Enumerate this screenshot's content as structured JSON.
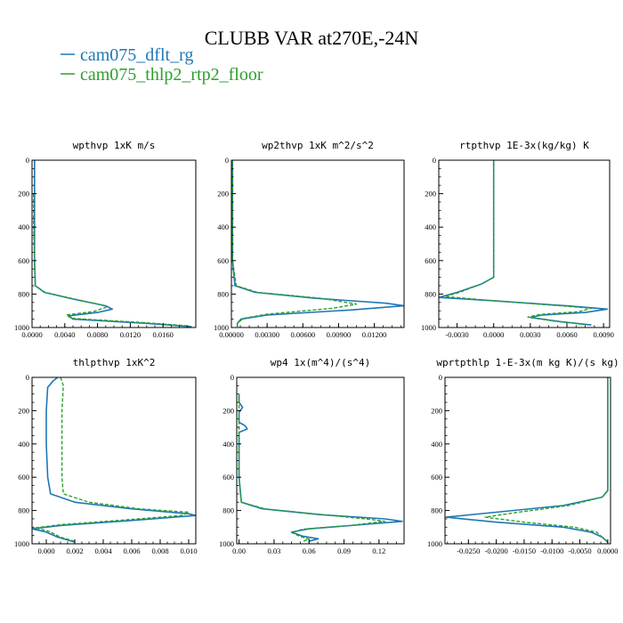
{
  "figure": {
    "title": "CLUBB VAR at270E,-24N",
    "legend": [
      {
        "label": "cam075_dflt_rg",
        "color": "#1f77b4"
      },
      {
        "label": "cam075_thlp2_rtp2_floor",
        "color": "#2ca02c"
      }
    ]
  },
  "chart_data": [
    {
      "type": "line",
      "title": "wpthvp  1xK m/s",
      "xlim": [
        0,
        0.02
      ],
      "ylim": [
        1000,
        0
      ],
      "xticks": [
        0.0,
        0.004,
        0.008,
        0.012,
        0.016
      ],
      "xtick_labels": [
        "0.0000",
        "0.0040",
        "0.0080",
        "0.0120",
        "0.0160"
      ],
      "yticks": [
        0,
        200,
        400,
        600,
        800,
        1000
      ],
      "ytick_labels": [
        "0",
        "200",
        "400",
        "600",
        "800",
        "1000"
      ],
      "series": [
        {
          "name": "cam075_dflt_rg",
          "style": "solid",
          "points": [
            [
              0.0003,
              0
            ],
            [
              0.0003,
              200
            ],
            [
              0.0003,
              400
            ],
            [
              0.0003,
              600
            ],
            [
              0.0004,
              750
            ],
            [
              0.0015,
              790
            ],
            [
              0.005,
              830
            ],
            [
              0.009,
              870
            ],
            [
              0.0098,
              890
            ],
            [
              0.008,
              910
            ],
            [
              0.0045,
              930
            ],
            [
              0.005,
              950
            ],
            [
              0.014,
              975
            ],
            [
              0.0195,
              995
            ]
          ]
        },
        {
          "name": "cam075_thlp2_rtp2_floor",
          "style": "dashed",
          "points": [
            [
              0.0002,
              200
            ],
            [
              0.0002,
              400
            ],
            [
              0.0003,
              600
            ],
            [
              0.0004,
              750
            ],
            [
              0.0016,
              790
            ],
            [
              0.0052,
              830
            ],
            [
              0.0085,
              865
            ],
            [
              0.009,
              880
            ],
            [
              0.0075,
              905
            ],
            [
              0.0042,
              925
            ],
            [
              0.0048,
              945
            ],
            [
              0.0135,
              970
            ],
            [
              0.019,
              990
            ]
          ]
        }
      ]
    },
    {
      "type": "line",
      "title": "wp2thvp  1xK m^2/s^2",
      "xlim": [
        0,
        0.0145
      ],
      "ylim": [
        1000,
        0
      ],
      "xticks": [
        0.0,
        0.003,
        0.006,
        0.009,
        0.012
      ],
      "xtick_labels": [
        "0.00000",
        "0.00300",
        "0.00600",
        "0.00900",
        "0.01200"
      ],
      "yticks": [
        0,
        200,
        400,
        600,
        800,
        1000
      ],
      "ytick_labels": [
        "0",
        "200",
        "400",
        "600",
        "800",
        "1000"
      ],
      "series": [
        {
          "name": "cam075_dflt_rg",
          "style": "solid",
          "points": [
            [
              0.0001,
              0
            ],
            [
              0.0001,
              200
            ],
            [
              0.0001,
              400
            ],
            [
              0.0001,
              600
            ],
            [
              0.0003,
              750
            ],
            [
              0.002,
              790
            ],
            [
              0.007,
              825
            ],
            [
              0.013,
              855
            ],
            [
              0.0145,
              870
            ],
            [
              0.01,
              895
            ],
            [
              0.003,
              925
            ],
            [
              0.0008,
              950
            ],
            [
              0.0005,
              975
            ],
            [
              0.0005,
              995
            ]
          ]
        },
        {
          "name": "cam075_thlp2_rtp2_floor",
          "style": "dashed",
          "points": [
            [
              0.0001,
              0
            ],
            [
              0.0001,
              200
            ],
            [
              0.0001,
              400
            ],
            [
              0.0001,
              600
            ],
            [
              0.0004,
              750
            ],
            [
              0.0022,
              790
            ],
            [
              0.0075,
              825
            ],
            [
              0.0105,
              860
            ],
            [
              0.0085,
              885
            ],
            [
              0.003,
              920
            ],
            [
              0.001,
              945
            ],
            [
              0.0005,
              975
            ],
            [
              0.0005,
              995
            ]
          ]
        }
      ]
    },
    {
      "type": "line",
      "title": "rtpthvp  1E-3x(kg/kg) K",
      "xlim": [
        -0.0045,
        0.0095
      ],
      "ylim": [
        1000,
        0
      ],
      "xticks": [
        -0.003,
        0.0,
        0.003,
        0.006,
        0.009
      ],
      "xtick_labels": [
        "-0.0030",
        "0.0000",
        "0.0030",
        "0.0060",
        "0.0090"
      ],
      "yticks": [
        0,
        200,
        400,
        600,
        800,
        1000
      ],
      "ytick_labels": [
        "0",
        "200",
        "400",
        "600",
        "800",
        "1000"
      ],
      "series": [
        {
          "name": "cam075_dflt_rg",
          "style": "solid",
          "points": [
            [
              0.0,
              0
            ],
            [
              0.0,
              200
            ],
            [
              0.0,
              400
            ],
            [
              0.0,
              600
            ],
            [
              0.0,
              700
            ],
            [
              -0.001,
              740
            ],
            [
              -0.003,
              790
            ],
            [
              -0.0045,
              820
            ],
            [
              0.0,
              840
            ],
            [
              0.006,
              870
            ],
            [
              0.0093,
              890
            ],
            [
              0.0075,
              910
            ],
            [
              0.004,
              925
            ],
            [
              0.003,
              940
            ],
            [
              0.0055,
              965
            ],
            [
              0.008,
              985
            ]
          ]
        },
        {
          "name": "cam075_thlp2_rtp2_floor",
          "style": "dashed",
          "points": [
            [
              0.0,
              0
            ],
            [
              0.0,
              200
            ],
            [
              0.0,
              400
            ],
            [
              0.0,
              600
            ],
            [
              0.0,
              700
            ],
            [
              -0.001,
              740
            ],
            [
              -0.0028,
              790
            ],
            [
              -0.004,
              815
            ],
            [
              0.0,
              840
            ],
            [
              0.0055,
              870
            ],
            [
              0.008,
              885
            ],
            [
              0.007,
              905
            ],
            [
              0.0038,
              922
            ],
            [
              0.0028,
              938
            ],
            [
              0.005,
              962
            ],
            [
              0.0075,
              982
            ]
          ]
        }
      ]
    },
    {
      "type": "line",
      "title": "thlpthvp  1xK^2",
      "xlim": [
        -0.001,
        0.0105
      ],
      "ylim": [
        1000,
        0
      ],
      "xticks": [
        0.0,
        0.002,
        0.004,
        0.006,
        0.008,
        0.01
      ],
      "xtick_labels": [
        "0.000",
        "0.002",
        "0.004",
        "0.006",
        "0.008",
        "0.010"
      ],
      "yticks": [
        0,
        200,
        400,
        600,
        800,
        1000
      ],
      "ytick_labels": [
        "0",
        "200",
        "400",
        "600",
        "800",
        "1000"
      ],
      "series": [
        {
          "name": "cam075_dflt_rg",
          "style": "solid",
          "points": [
            [
              0.0008,
              0
            ],
            [
              0.0005,
              20
            ],
            [
              0.0001,
              60
            ],
            [
              0.0,
              200
            ],
            [
              0.0,
              400
            ],
            [
              0.0001,
              600
            ],
            [
              0.0003,
              700
            ],
            [
              0.002,
              750
            ],
            [
              0.006,
              790
            ],
            [
              0.01,
              820
            ],
            [
              0.0105,
              830
            ],
            [
              0.006,
              860
            ],
            [
              0.001,
              890
            ],
            [
              -0.001,
              910
            ],
            [
              0.0,
              930
            ],
            [
              0.0008,
              960
            ],
            [
              0.002,
              990
            ]
          ]
        },
        {
          "name": "cam075_thlp2_rtp2_floor",
          "style": "dashed",
          "points": [
            [
              0.001,
              0
            ],
            [
              0.0012,
              50
            ],
            [
              0.0011,
              200
            ],
            [
              0.0011,
              400
            ],
            [
              0.0011,
              600
            ],
            [
              0.0012,
              700
            ],
            [
              0.003,
              750
            ],
            [
              0.0065,
              790
            ],
            [
              0.01,
              810
            ],
            [
              0.0095,
              830
            ],
            [
              0.005,
              860
            ],
            [
              0.001,
              885
            ],
            [
              -0.0008,
              905
            ],
            [
              0.0002,
              925
            ],
            [
              0.001,
              960
            ],
            [
              0.002,
              985
            ]
          ]
        }
      ]
    },
    {
      "type": "line",
      "title": "wp4  1x(m^4)/(s^4)",
      "xlim": [
        -0.002,
        0.1415
      ],
      "ylim": [
        1000,
        0
      ],
      "xticks": [
        0.0,
        0.03,
        0.06,
        0.09,
        0.12
      ],
      "xtick_labels": [
        "0.00",
        "0.03",
        "0.06",
        "0.09",
        "0.12"
      ],
      "yticks": [
        0,
        200,
        400,
        600,
        800,
        1000
      ],
      "ytick_labels": [
        "0",
        "200",
        "400",
        "600",
        "800",
        "1000"
      ],
      "series": [
        {
          "name": "cam075_dflt_rg",
          "style": "solid",
          "points": [
            [
              0.0,
              100
            ],
            [
              0.0,
              150
            ],
            [
              0.003,
              180
            ],
            [
              0.0,
              210
            ],
            [
              0.0,
              270
            ],
            [
              0.005,
              290
            ],
            [
              0.007,
              310
            ],
            [
              0.0,
              330
            ],
            [
              0.0,
              400
            ],
            [
              0.0,
              600
            ],
            [
              0.002,
              750
            ],
            [
              0.02,
              790
            ],
            [
              0.07,
              825
            ],
            [
              0.125,
              850
            ],
            [
              0.14,
              865
            ],
            [
              0.105,
              885
            ],
            [
              0.06,
              910
            ],
            [
              0.045,
              930
            ],
            [
              0.055,
              955
            ],
            [
              0.068,
              970
            ],
            [
              0.06,
              985
            ]
          ]
        },
        {
          "name": "cam075_thlp2_rtp2_floor",
          "style": "dashed",
          "points": [
            [
              0.0,
              100
            ],
            [
              0.0,
              400
            ],
            [
              0.0,
              600
            ],
            [
              0.002,
              750
            ],
            [
              0.022,
              790
            ],
            [
              0.072,
              825
            ],
            [
              0.115,
              855
            ],
            [
              0.125,
              865
            ],
            [
              0.095,
              890
            ],
            [
              0.055,
              912
            ],
            [
              0.045,
              932
            ],
            [
              0.052,
              955
            ],
            [
              0.06,
              972
            ],
            [
              0.055,
              985
            ]
          ]
        }
      ]
    },
    {
      "type": "line",
      "title": "wprtpthlp  1-E-3x(m kg K)/(s kg)",
      "xlim": [
        -0.0292,
        0.0005
      ],
      "ylim": [
        1000,
        0
      ],
      "xticks": [
        -0.025,
        -0.02,
        -0.015,
        -0.01,
        -0.005,
        0.0
      ],
      "xtick_labels": [
        "-0.0250",
        "-0.0200",
        "-0.0150",
        "-0.0100",
        "-0.0050",
        "0.0000"
      ],
      "yticks": [
        0,
        200,
        400,
        600,
        800,
        1000
      ],
      "ytick_labels": [
        "0",
        "200",
        "400",
        "600",
        "800",
        "1000"
      ],
      "series": [
        {
          "name": "cam075_dflt_rg",
          "style": "solid",
          "points": [
            [
              0.0,
              0
            ],
            [
              0.0,
              200
            ],
            [
              0.0,
              400
            ],
            [
              0.0,
              600
            ],
            [
              0.0,
              680
            ],
            [
              -0.001,
              720
            ],
            [
              -0.008,
              770
            ],
            [
              -0.02,
              810
            ],
            [
              -0.029,
              840
            ],
            [
              -0.02,
              870
            ],
            [
              -0.008,
              900
            ],
            [
              -0.003,
              930
            ],
            [
              -0.001,
              960
            ],
            [
              0.0,
              990
            ]
          ]
        },
        {
          "name": "cam075_thlp2_rtp2_floor",
          "style": "dashed",
          "points": [
            [
              0.0,
              0
            ],
            [
              0.0,
              200
            ],
            [
              0.0,
              400
            ],
            [
              0.0,
              600
            ],
            [
              0.0,
              680
            ],
            [
              -0.001,
              720
            ],
            [
              -0.007,
              770
            ],
            [
              -0.016,
              810
            ],
            [
              -0.022,
              840
            ],
            [
              -0.015,
              870
            ],
            [
              -0.006,
              900
            ],
            [
              -0.002,
              930
            ],
            [
              -0.001,
              960
            ],
            [
              0.0,
              990
            ]
          ]
        }
      ]
    }
  ]
}
